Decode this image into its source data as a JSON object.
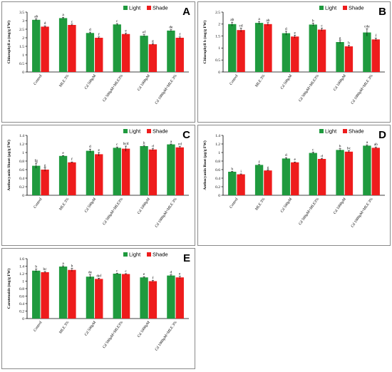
{
  "colors": {
    "light": "#1f9a3e",
    "shade": "#ee1c1c",
    "axis": "#000000",
    "error": "#000000"
  },
  "legend": {
    "light": "Light",
    "shade": "Shade",
    "placement": "top-right"
  },
  "categories": [
    "Control",
    "MLE 3%",
    "Cd 500µM",
    "Cd 500µM+MLE3%",
    "Cd 1000µM",
    "Cd 1000µM+MLE 3%"
  ],
  "chart_data": [
    {
      "panel": "A",
      "type": "bar",
      "ylabel": "Chlorophyll a (mg/g FW)",
      "ylim": [
        0,
        3.5
      ],
      "yticks": [
        0,
        0.5,
        1,
        1.5,
        2,
        2.5,
        3,
        3.5
      ],
      "tick_labels": [
        "0",
        "0.5",
        "1",
        "1.5",
        "2",
        "2.5",
        "3",
        "3.5"
      ],
      "grid": false,
      "series": [
        {
          "name": "Light",
          "values": [
            3.05,
            3.15,
            2.28,
            2.78,
            2.12,
            2.42
          ],
          "errors": [
            0.06,
            0.05,
            0.05,
            0.05,
            0.06,
            0.05
          ],
          "letters": [
            "ab",
            "a",
            "d",
            "c",
            "ef",
            "de"
          ]
        },
        {
          "name": "Shade",
          "values": [
            2.65,
            2.75,
            2.0,
            2.22,
            1.62,
            2.0
          ],
          "errors": [
            0.05,
            0.05,
            0.05,
            0.05,
            0.04,
            0.05
          ],
          "letters": [
            "d",
            "c",
            "f",
            "e",
            "g",
            "f"
          ]
        }
      ]
    },
    {
      "panel": "B",
      "type": "bar",
      "ylabel": "Chlorophyll b (mg/g FW)",
      "ylim": [
        0,
        2.5
      ],
      "yticks": [
        0,
        0.5,
        1,
        1.5,
        2,
        2.5
      ],
      "tick_labels": [
        "0",
        "0.5",
        "1",
        "1.5",
        "2",
        "2.5"
      ],
      "grid": false,
      "series": [
        {
          "name": "Light",
          "values": [
            2.0,
            2.05,
            1.62,
            1.98,
            1.25,
            1.65
          ],
          "errors": [
            0.08,
            0.06,
            0.08,
            0.06,
            0.06,
            0.15
          ],
          "letters": [
            "ab",
            "a",
            "d",
            "b",
            "g",
            "cde"
          ]
        },
        {
          "name": "Shade",
          "values": [
            1.75,
            2.0,
            1.48,
            1.77,
            1.07,
            1.36
          ],
          "errors": [
            0.08,
            0.06,
            0.06,
            0.06,
            0.05,
            0.06
          ],
          "letters": [
            "cd",
            "ab",
            "e",
            "c",
            "h",
            "f"
          ]
        }
      ]
    },
    {
      "panel": "C",
      "type": "bar",
      "ylabel": "Anthocyanin Shoot (µg/g FW)",
      "ylim": [
        0,
        1.4
      ],
      "yticks": [
        0,
        0.2,
        0.4,
        0.6,
        0.8,
        1,
        1.2,
        1.4
      ],
      "tick_labels": [
        "0",
        "0.2",
        "0.4",
        "0.6",
        "0.8",
        "1",
        "1.2",
        "1.4"
      ],
      "grid": false,
      "series": [
        {
          "name": "Light",
          "values": [
            0.69,
            0.92,
            1.04,
            1.11,
            1.15,
            1.19
          ],
          "errors": [
            0.06,
            0.01,
            0.04,
            0.02,
            0.02,
            0.01
          ],
          "letters": [
            "fg",
            "e",
            "d",
            "c",
            "b",
            "a"
          ]
        },
        {
          "name": "Shade",
          "values": [
            0.6,
            0.77,
            0.96,
            1.09,
            1.07,
            1.12
          ],
          "errors": [
            0.04,
            0.01,
            0.04,
            0.06,
            0.02,
            0.02
          ],
          "letters": [
            "g",
            "f",
            "e",
            "bcd",
            "d",
            "cd"
          ]
        }
      ]
    },
    {
      "panel": "D",
      "type": "bar",
      "ylabel": "Anthocyanin Root (µg/g FW)",
      "ylim": [
        0,
        1.4
      ],
      "yticks": [
        0,
        0.2,
        0.4,
        0.6,
        0.8,
        1,
        1.2,
        1.4
      ],
      "tick_labels": [
        "0",
        "0.2",
        "0.4",
        "0.6",
        "0.8",
        "1",
        "1.2",
        "1.4"
      ],
      "grid": false,
      "series": [
        {
          "name": "Light",
          "values": [
            0.55,
            0.71,
            0.86,
            0.99,
            1.06,
            1.16
          ],
          "errors": [
            0.01,
            0.01,
            0.02,
            0.02,
            0.03,
            0.02
          ],
          "letters": [
            "h",
            "f",
            "d",
            "c",
            "b",
            "a"
          ]
        },
        {
          "name": "Shade",
          "values": [
            0.49,
            0.58,
            0.77,
            0.85,
            1.02,
            1.11
          ],
          "errors": [
            0.01,
            0.01,
            0.01,
            0.01,
            0.02,
            0.02
          ],
          "letters": [
            "i",
            "g",
            "e",
            "d",
            "bc",
            "ab"
          ]
        }
      ]
    },
    {
      "panel": "E",
      "type": "bar",
      "ylabel": "Carotenoids (mg/g FW)",
      "ylim": [
        0,
        1.6
      ],
      "yticks": [
        0,
        0.2,
        0.4,
        0.6,
        0.8,
        1,
        1.2,
        1.4,
        1.6
      ],
      "tick_labels": [
        "0",
        "0.2",
        "0.4",
        "0.6",
        "0.8",
        "1",
        "1.2",
        "1.4",
        "1.6"
      ],
      "grid": false,
      "series": [
        {
          "name": "Light",
          "values": [
            1.28,
            1.39,
            1.12,
            1.2,
            1.1,
            1.15
          ],
          "errors": [
            0.04,
            0.02,
            0.05,
            0.01,
            0.02,
            0.02
          ],
          "letters": [
            "b",
            "a",
            "de",
            "c",
            "e",
            "d"
          ]
        },
        {
          "name": "Shade",
          "values": [
            1.24,
            1.3,
            1.06,
            1.19,
            1.0,
            1.1
          ],
          "errors": [
            0.02,
            0.04,
            0.02,
            0.01,
            0.02,
            0.03
          ],
          "letters": [
            "bc",
            "b",
            "def",
            "c",
            "f",
            "e"
          ]
        }
      ]
    }
  ]
}
